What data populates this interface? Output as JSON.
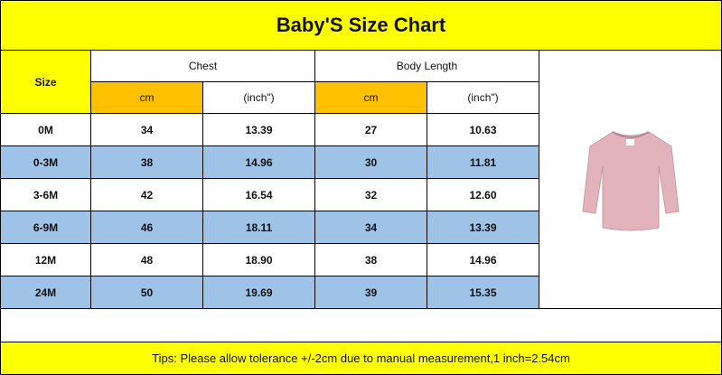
{
  "header": {
    "title": "Baby'S  Size Chart"
  },
  "table": {
    "size_label": "Size",
    "groups": [
      "Chest",
      "Body Length"
    ],
    "units": [
      "cm",
      "(inch\")",
      "cm",
      "(inch\")"
    ],
    "rows": [
      [
        "0M",
        "34",
        "13.39",
        "27",
        "10.63"
      ],
      [
        "0-3M",
        "38",
        "14.96",
        "30",
        "11.81"
      ],
      [
        "3-6M",
        "42",
        "16.54",
        "32",
        "12.60"
      ],
      [
        "6-9M",
        "46",
        "18.11",
        "34",
        "13.39"
      ],
      [
        "12M",
        "48",
        "18.90",
        "38",
        "14.96"
      ],
      [
        "24M",
        "50",
        "19.69",
        "39",
        "15.35"
      ]
    ]
  },
  "footer": {
    "tips": "Tips: Please allow tolerance +/-2cm due to manual measurement,1 inch=2.54cm"
  }
}
